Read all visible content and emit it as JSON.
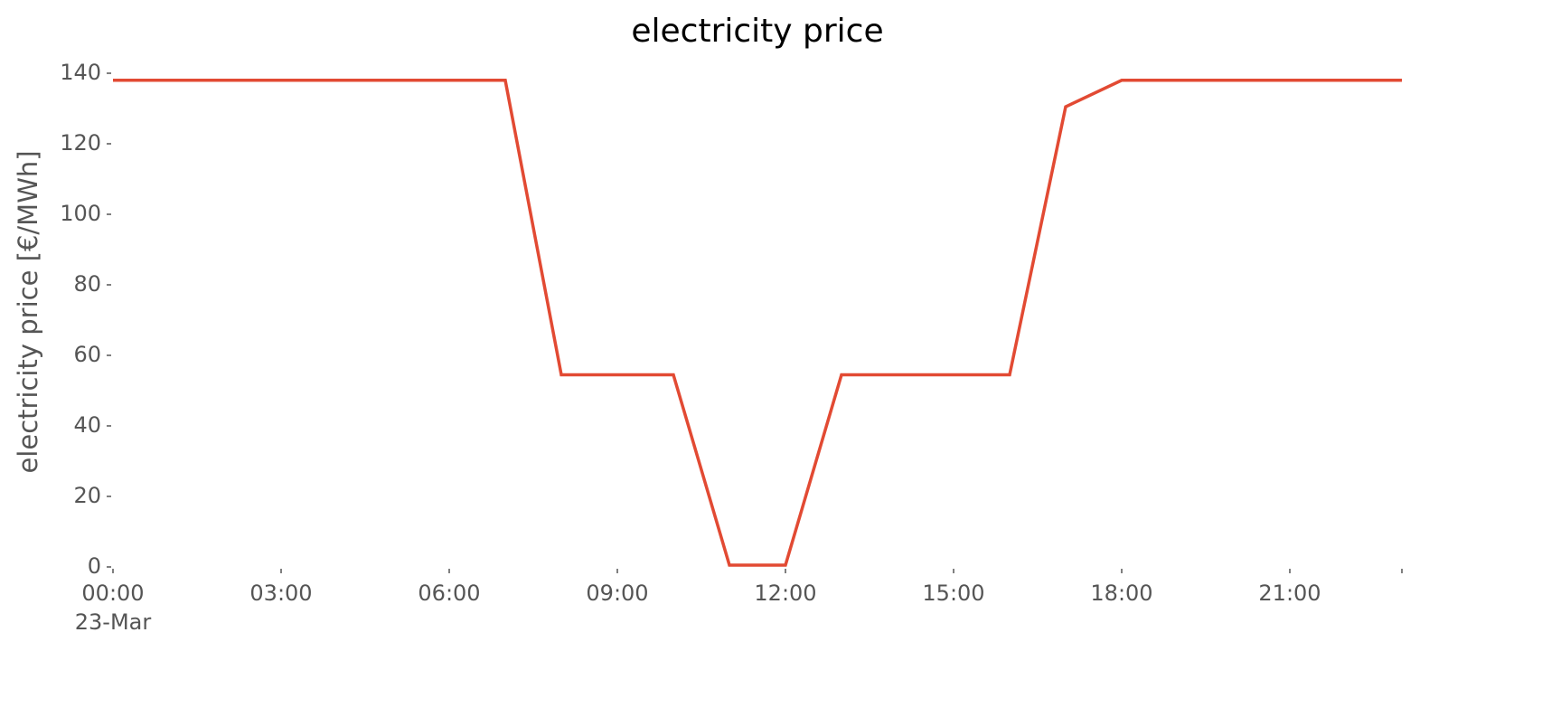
{
  "chart_data": {
    "type": "line",
    "title": "electricity price",
    "ylabel": "electricity price [€/MWh]",
    "x": [
      0,
      1,
      2,
      3,
      4,
      5,
      6,
      7,
      8,
      9,
      10,
      11,
      12,
      13,
      14,
      15,
      16,
      17,
      18,
      19,
      20,
      21,
      22,
      23
    ],
    "series": [
      {
        "name": "electricity price",
        "color": "#e24a33",
        "values": [
          138,
          138,
          138,
          138,
          138,
          138,
          138,
          138,
          54.5,
          54.5,
          54.5,
          0.5,
          0.5,
          54.5,
          54.5,
          54.5,
          54.5,
          130.5,
          138,
          138,
          138,
          138,
          138,
          138
        ]
      }
    ],
    "xlim": [
      0,
      23
    ],
    "xticks": [
      {
        "value": 0,
        "label": "00:00"
      },
      {
        "value": 3,
        "label": "03:00"
      },
      {
        "value": 6,
        "label": "06:00"
      },
      {
        "value": 9,
        "label": "09:00"
      },
      {
        "value": 12,
        "label": "12:00"
      },
      {
        "value": 15,
        "label": "15:00"
      },
      {
        "value": 18,
        "label": "18:00"
      },
      {
        "value": 21,
        "label": "21:00"
      },
      {
        "value": 23,
        "label": null
      }
    ],
    "x_date_label": "23-Mar",
    "ylim": [
      0,
      140
    ],
    "yticks": [
      0,
      20,
      40,
      60,
      80,
      100,
      120,
      140
    ],
    "grid": false
  }
}
